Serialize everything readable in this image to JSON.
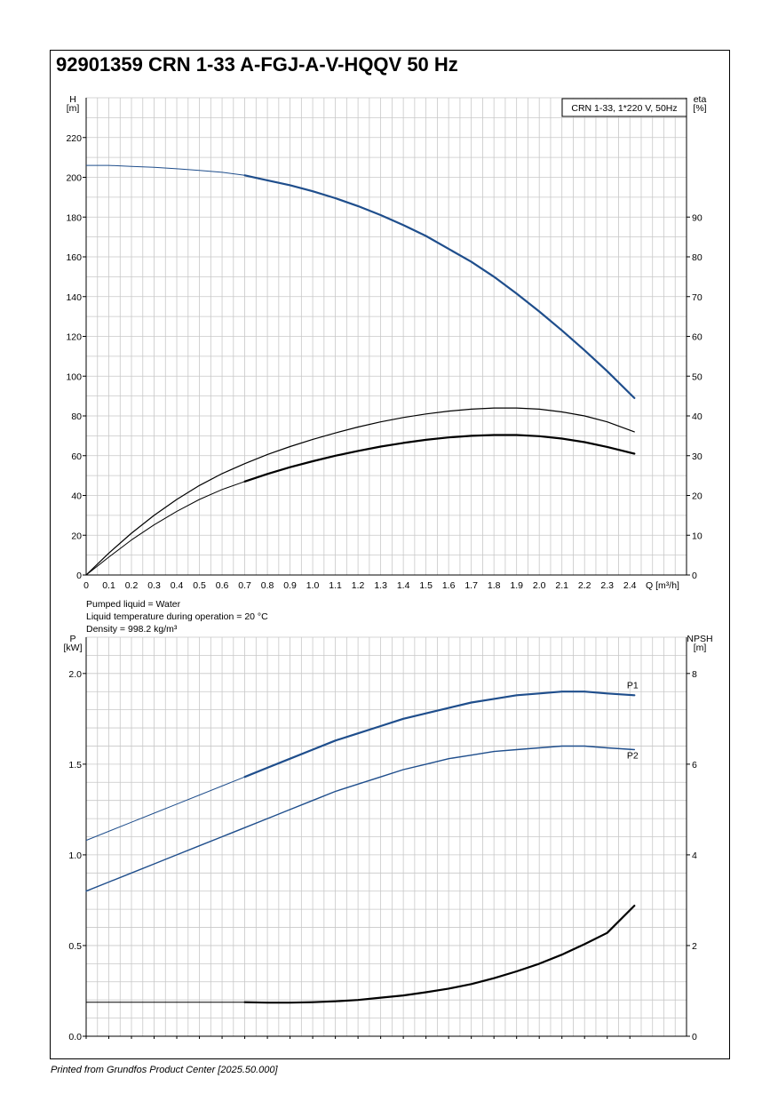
{
  "title": "92901359 CRN 1-33 A-FGJ-A-V-HQQV 50 Hz",
  "footer": "Printed from Grundfos Product Center [2025.50.000]",
  "colors": {
    "blue": "#1f4e8c",
    "black": "#000000",
    "grid": "#c8c8c8"
  },
  "liquid_info": [
    "Pumped liquid = Water",
    "Liquid temperature during operation = 20 °C",
    "Density = 998.2 kg/m³"
  ],
  "chart_data": [
    {
      "type": "line",
      "legend": "CRN 1-33, 1*220 V, 50Hz",
      "xlabel": "Q [m³/h]",
      "ylabel_left": [
        "H",
        "[m]"
      ],
      "ylabel_right": [
        "eta",
        "[%]"
      ],
      "x_ticks": [
        "0",
        "0.1",
        "0.2",
        "0.3",
        "0.4",
        "0.5",
        "0.6",
        "0.7",
        "0.8",
        "0.9",
        "1.0",
        "1.1",
        "1.2",
        "1.3",
        "1.4",
        "1.5",
        "1.6",
        "1.7",
        "1.8",
        "1.9",
        "2.0",
        "2.1",
        "2.2",
        "2.3",
        "2.4"
      ],
      "xlim": [
        0,
        2.65
      ],
      "ylim_left": [
        0,
        240
      ],
      "ylim_right": [
        0,
        120
      ],
      "y_ticks_left": [
        0,
        20,
        40,
        60,
        80,
        100,
        120,
        140,
        160,
        180,
        200,
        220
      ],
      "y_ticks_right": [
        0,
        10,
        20,
        30,
        40,
        50,
        60,
        70,
        80,
        90
      ],
      "grid": true,
      "series": [
        {
          "axis": "left",
          "color": "#1f4e8c",
          "width": 2.2,
          "solid_from": 0.7,
          "x": [
            0,
            0.1,
            0.2,
            0.3,
            0.4,
            0.5,
            0.6,
            0.7,
            0.8,
            0.9,
            1.0,
            1.1,
            1.2,
            1.3,
            1.4,
            1.5,
            1.6,
            1.7,
            1.8,
            1.9,
            2.0,
            2.1,
            2.2,
            2.3,
            2.42
          ],
          "y": [
            206,
            206,
            205.5,
            205,
            204.3,
            203.5,
            202.5,
            201,
            198.5,
            196,
            193,
            189.5,
            185.5,
            181,
            176,
            170.5,
            164,
            157.5,
            150,
            141.5,
            132.5,
            123,
            113,
            102.5,
            89
          ]
        },
        {
          "axis": "right",
          "color": "#000000",
          "width": 1.2,
          "solid_from": 0,
          "x": [
            0,
            0.1,
            0.2,
            0.3,
            0.4,
            0.5,
            0.6,
            0.7,
            0.8,
            0.9,
            1.0,
            1.1,
            1.2,
            1.3,
            1.4,
            1.5,
            1.6,
            1.7,
            1.8,
            1.9,
            2.0,
            2.1,
            2.2,
            2.3,
            2.42
          ],
          "y": [
            0,
            5.5,
            10.5,
            15,
            19,
            22.5,
            25.5,
            28,
            30.3,
            32.3,
            34.1,
            35.7,
            37.2,
            38.5,
            39.6,
            40.5,
            41.2,
            41.7,
            42,
            42,
            41.7,
            41,
            40,
            38.5,
            36
          ]
        },
        {
          "axis": "right",
          "color": "#000000",
          "width": 2.2,
          "solid_from": 0.7,
          "x": [
            0,
            0.1,
            0.2,
            0.3,
            0.4,
            0.5,
            0.6,
            0.7,
            0.8,
            0.9,
            1.0,
            1.1,
            1.2,
            1.3,
            1.4,
            1.5,
            1.6,
            1.7,
            1.8,
            1.9,
            2.0,
            2.1,
            2.2,
            2.3,
            2.42
          ],
          "y": [
            0,
            4.5,
            8.8,
            12.6,
            16,
            19,
            21.5,
            23.5,
            25.4,
            27.1,
            28.6,
            30,
            31.2,
            32.3,
            33.2,
            34,
            34.6,
            35,
            35.2,
            35.2,
            34.9,
            34.3,
            33.4,
            32.2,
            30.5
          ]
        }
      ]
    },
    {
      "type": "line",
      "xlim": [
        0,
        2.65
      ],
      "ylabel_left": [
        "P",
        "[kW]"
      ],
      "ylabel_right": [
        "NPSH",
        "[m]"
      ],
      "ylim_left": [
        0,
        2.2
      ],
      "ylim_right": [
        0,
        8.8
      ],
      "y_ticks_left": [
        "0.0",
        "0.5",
        "1.0",
        "1.5",
        "2.0"
      ],
      "y_tick_values_left": [
        0,
        0.5,
        1.0,
        1.5,
        2.0
      ],
      "y_ticks_right": [
        0,
        2,
        4,
        6,
        8
      ],
      "grid": true,
      "series": [
        {
          "name": "P1",
          "axis": "left",
          "color": "#1f4e8c",
          "width": 2.2,
          "solid_from": 0.7,
          "x": [
            0,
            0.1,
            0.2,
            0.3,
            0.4,
            0.5,
            0.6,
            0.7,
            0.8,
            0.9,
            1.0,
            1.1,
            1.2,
            1.3,
            1.4,
            1.5,
            1.6,
            1.7,
            1.8,
            1.9,
            2.0,
            2.1,
            2.2,
            2.3,
            2.42
          ],
          "y": [
            1.08,
            1.13,
            1.18,
            1.23,
            1.28,
            1.33,
            1.38,
            1.43,
            1.48,
            1.53,
            1.58,
            1.63,
            1.67,
            1.71,
            1.75,
            1.78,
            1.81,
            1.84,
            1.86,
            1.88,
            1.89,
            1.9,
            1.9,
            1.89,
            1.88
          ]
        },
        {
          "name": "P2",
          "axis": "left",
          "color": "#1f4e8c",
          "width": 1.4,
          "solid_from": 0,
          "x": [
            0,
            0.1,
            0.2,
            0.3,
            0.4,
            0.5,
            0.6,
            0.7,
            0.8,
            0.9,
            1.0,
            1.1,
            1.2,
            1.3,
            1.4,
            1.5,
            1.6,
            1.7,
            1.8,
            1.9,
            2.0,
            2.1,
            2.2,
            2.3,
            2.42
          ],
          "y": [
            0.8,
            0.85,
            0.9,
            0.95,
            1.0,
            1.05,
            1.1,
            1.15,
            1.2,
            1.25,
            1.3,
            1.35,
            1.39,
            1.43,
            1.47,
            1.5,
            1.53,
            1.55,
            1.57,
            1.58,
            1.59,
            1.6,
            1.6,
            1.59,
            1.58
          ]
        },
        {
          "name": "NPSH",
          "axis": "right",
          "color": "#000000",
          "width": 2.2,
          "solid_from": 0.7,
          "x": [
            0,
            0.1,
            0.2,
            0.3,
            0.4,
            0.5,
            0.6,
            0.7,
            0.8,
            0.9,
            1.0,
            1.1,
            1.2,
            1.3,
            1.4,
            1.5,
            1.6,
            1.7,
            1.8,
            1.9,
            2.0,
            2.1,
            2.2,
            2.3,
            2.42
          ],
          "y": [
            0.75,
            0.75,
            0.75,
            0.75,
            0.75,
            0.75,
            0.75,
            0.75,
            0.74,
            0.74,
            0.75,
            0.77,
            0.8,
            0.85,
            0.9,
            0.97,
            1.05,
            1.15,
            1.28,
            1.43,
            1.6,
            1.8,
            2.03,
            2.28,
            2.88
          ]
        }
      ]
    }
  ]
}
